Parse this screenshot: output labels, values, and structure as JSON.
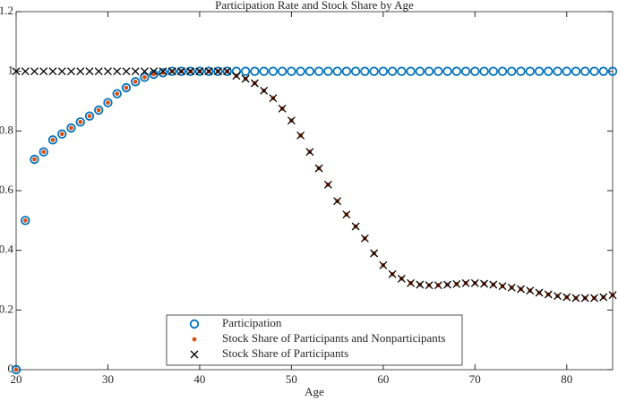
{
  "chart_data": {
    "type": "scatter",
    "title": "Participation Rate and Stock Share by Age",
    "x_label": "Age",
    "x": [
      20,
      21,
      22,
      23,
      24,
      25,
      26,
      27,
      28,
      29,
      30,
      31,
      32,
      33,
      34,
      35,
      36,
      37,
      38,
      39,
      40,
      41,
      42,
      43,
      44,
      45,
      46,
      47,
      48,
      49,
      50,
      51,
      52,
      53,
      54,
      55,
      56,
      57,
      58,
      59,
      60,
      61,
      62,
      63,
      64,
      65,
      66,
      67,
      68,
      69,
      70,
      71,
      72,
      73,
      74,
      75,
      76,
      77,
      78,
      79,
      80,
      81,
      82,
      83,
      84,
      85
    ],
    "series": [
      {
        "name": "Participation",
        "color": "#0072bd",
        "marker": "circle",
        "values": [
          0,
          0.5,
          0.705,
          0.73,
          0.77,
          0.79,
          0.81,
          0.83,
          0.85,
          0.87,
          0.895,
          0.925,
          0.945,
          0.965,
          0.98,
          0.99,
          0.995,
          1,
          1,
          1,
          1,
          1,
          1,
          1,
          1,
          1,
          1,
          1,
          1,
          1,
          1,
          1,
          1,
          1,
          1,
          1,
          1,
          1,
          1,
          1,
          1,
          1,
          1,
          1,
          1,
          1,
          1,
          1,
          1,
          1,
          1,
          1,
          1,
          1,
          1,
          1,
          1,
          1,
          1,
          1,
          1,
          1,
          1,
          1,
          1,
          1
        ]
      },
      {
        "name": "Stock Share of Participants and Nonparticipants",
        "color": "#d95319",
        "marker": "dot",
        "values": [
          0,
          0.5,
          0.705,
          0.73,
          0.77,
          0.79,
          0.81,
          0.83,
          0.85,
          0.87,
          0.895,
          0.925,
          0.945,
          0.965,
          0.98,
          0.99,
          0.995,
          1,
          1,
          1,
          1,
          1,
          1,
          1,
          0.985,
          0.975,
          0.96,
          0.935,
          0.91,
          0.875,
          0.835,
          0.785,
          0.73,
          0.675,
          0.62,
          0.565,
          0.52,
          0.48,
          0.44,
          0.39,
          0.35,
          0.32,
          0.305,
          0.29,
          0.285,
          0.283,
          0.283,
          0.285,
          0.287,
          0.29,
          0.29,
          0.288,
          0.285,
          0.28,
          0.275,
          0.27,
          0.265,
          0.258,
          0.252,
          0.247,
          0.243,
          0.24,
          0.24,
          0.24,
          0.243,
          0.25
        ]
      },
      {
        "name": "Stock Share of Participants",
        "color": "#000000",
        "marker": "x",
        "values": [
          1,
          1,
          1,
          1,
          1,
          1,
          1,
          1,
          1,
          1,
          1,
          1,
          1,
          1,
          1,
          1,
          1,
          1,
          1,
          1,
          1,
          1,
          1,
          1,
          0.985,
          0.975,
          0.96,
          0.935,
          0.91,
          0.875,
          0.835,
          0.785,
          0.73,
          0.675,
          0.62,
          0.565,
          0.52,
          0.48,
          0.44,
          0.39,
          0.35,
          0.32,
          0.305,
          0.29,
          0.285,
          0.283,
          0.283,
          0.285,
          0.287,
          0.29,
          0.29,
          0.288,
          0.285,
          0.28,
          0.275,
          0.27,
          0.265,
          0.258,
          0.252,
          0.247,
          0.243,
          0.24,
          0.24,
          0.24,
          0.243,
          0.25
        ]
      }
    ],
    "xlim": [
      20,
      85
    ],
    "xticks": [
      20,
      30,
      40,
      50,
      60,
      70,
      80
    ],
    "ylim": [
      0,
      1.2
    ],
    "yticks": [
      0,
      0.2,
      0.4,
      0.6,
      0.8,
      1,
      1.2
    ],
    "legend": "south"
  }
}
